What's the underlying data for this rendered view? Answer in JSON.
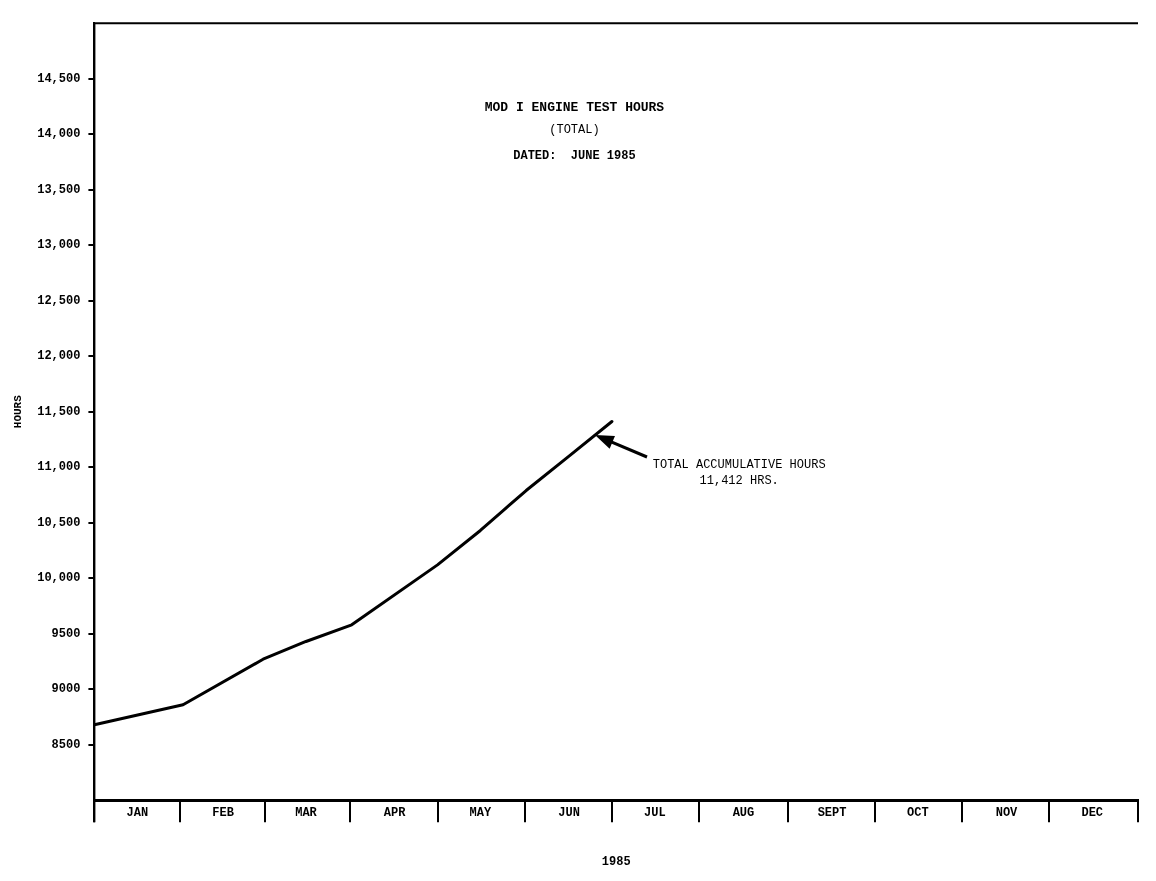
{
  "chart_data": {
    "type": "line",
    "title": "MOD I ENGINE TEST HOURS",
    "subtitle": "(TOTAL)",
    "xlabel": "1985",
    "ylabel": "HOURS",
    "annotations": [
      "DATED:  JUNE 1985",
      "TOTAL ACCUMULATIVE HOURS\n11,412 HRS."
    ],
    "series": [
      {
        "color": "#000000",
        "x": [
          "1985-01-01",
          "1985-02-01",
          "1985-03-01",
          "1985-03-16",
          "1985-04-01",
          "1985-05-01",
          "1985-05-16",
          "1985-06-01",
          "1985-06-16",
          "1985-07-01"
        ],
        "values": [
          8680,
          8860,
          9270,
          9430,
          9580,
          10120,
          10430,
          10790,
          11100,
          11412
        ]
      }
    ],
    "xlim": [
      "1985-01-01",
      "1986-01-01"
    ],
    "xticks": [
      {
        "value": "1985-01-16",
        "label": "JAN"
      },
      {
        "value": "1985-02-15",
        "label": "FEB"
      },
      {
        "value": "1985-03-16",
        "label": "MAR"
      },
      {
        "value": "1985-04-16",
        "label": "APR"
      },
      {
        "value": "1985-05-16",
        "label": "MAY"
      },
      {
        "value": "1985-06-16",
        "label": "JUN"
      },
      {
        "value": "1985-07-16",
        "label": "JUL"
      },
      {
        "value": "1985-08-16",
        "label": "AUG"
      },
      {
        "value": "1985-09-16",
        "label": "SEPT"
      },
      {
        "value": "1985-10-16",
        "label": "OCT"
      },
      {
        "value": "1985-11-16",
        "label": "NOV"
      },
      {
        "value": "1985-12-16",
        "label": "DEC"
      }
    ],
    "ylim": [
      8000,
      15000
    ],
    "yticks": [
      8500,
      9000,
      9500,
      {
        "value": 10000,
        "label": "10,000"
      },
      {
        "value": 10500,
        "label": "10,500"
      },
      {
        "value": 11000,
        "label": "11,000"
      },
      {
        "value": 11500,
        "label": "11,500"
      },
      {
        "value": 12000,
        "label": "12,000"
      },
      {
        "value": 12500,
        "label": "12,500"
      },
      {
        "value": 13000,
        "label": "13,000"
      },
      {
        "value": 13500,
        "label": "13,500"
      },
      {
        "value": 14000,
        "label": "14,000"
      },
      {
        "value": 14500,
        "label": "14,500"
      }
    ],
    "grid": false,
    "legend": false,
    "marker": "none",
    "line_style": "solid"
  }
}
